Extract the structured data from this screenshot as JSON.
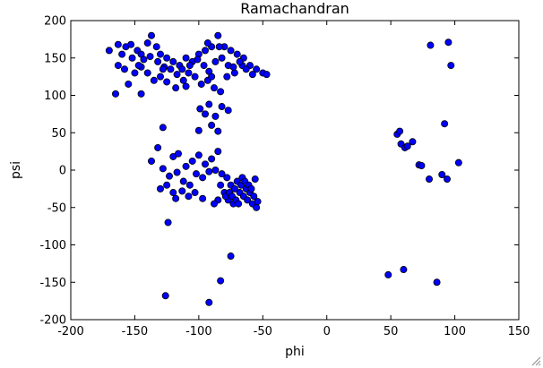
{
  "chart_data": {
    "type": "scatter",
    "title": "Ramachandran",
    "xlabel": "phi",
    "ylabel": "psi",
    "xlim": [
      -200,
      150
    ],
    "ylim": [
      -200,
      200
    ],
    "xticks": [
      -200,
      -150,
      -100,
      -50,
      0,
      50,
      100,
      150
    ],
    "yticks": [
      -200,
      -150,
      -100,
      -50,
      0,
      50,
      100,
      150,
      200
    ],
    "grid": false,
    "marker_color": "#0000ff",
    "series": [
      {
        "points": [
          [
            -170,
            160
          ],
          [
            -163,
            168
          ],
          [
            -160,
            155
          ],
          [
            -157,
            165
          ],
          [
            -153,
            168
          ],
          [
            -163,
            140
          ],
          [
            -158,
            135
          ],
          [
            -152,
            150
          ],
          [
            -148,
            160
          ],
          [
            -145,
            155
          ],
          [
            -140,
            170
          ],
          [
            -137,
            180
          ],
          [
            -133,
            165
          ],
          [
            -130,
            155
          ],
          [
            -125,
            150
          ],
          [
            -120,
            145
          ],
          [
            -115,
            140
          ],
          [
            -110,
            150
          ],
          [
            -105,
            145
          ],
          [
            -100,
            155
          ],
          [
            -95,
            160
          ],
          [
            -90,
            165
          ],
          [
            -85,
            180
          ],
          [
            -80,
            165
          ],
          [
            -75,
            160
          ],
          [
            -70,
            155
          ],
          [
            -65,
            150
          ],
          [
            -60,
            140
          ],
          [
            -55,
            135
          ],
          [
            -50,
            130
          ],
          [
            -47,
            128
          ],
          [
            -145,
            138
          ],
          [
            -140,
            130
          ],
          [
            -135,
            120
          ],
          [
            -130,
            125
          ],
          [
            -125,
            118
          ],
          [
            -118,
            110
          ],
          [
            -112,
            120
          ],
          [
            -108,
            130
          ],
          [
            -103,
            125
          ],
          [
            -98,
            115
          ],
          [
            -93,
            120
          ],
          [
            -88,
            110
          ],
          [
            -83,
            105
          ],
          [
            -78,
            125
          ],
          [
            -72,
            130
          ],
          [
            -66,
            140
          ],
          [
            -150,
            130
          ],
          [
            -147,
            140
          ],
          [
            -143,
            148
          ],
          [
            -138,
            152
          ],
          [
            -132,
            145
          ],
          [
            -127,
            138
          ],
          [
            -122,
            135
          ],
          [
            -117,
            128
          ],
          [
            -113,
            135
          ],
          [
            -107,
            140
          ],
          [
            -101,
            148
          ],
          [
            -96,
            140
          ],
          [
            -92,
            132
          ],
          [
            -87,
            145
          ],
          [
            -82,
            150
          ],
          [
            -77,
            140
          ],
          [
            -73,
            138
          ],
          [
            -68,
            145
          ],
          [
            -63,
            135
          ],
          [
            -58,
            128
          ],
          [
            -165,
            102
          ],
          [
            -155,
            115
          ],
          [
            -145,
            102
          ],
          [
            -128,
            135
          ],
          [
            -110,
            112
          ],
          [
            -90,
            125
          ],
          [
            -84,
            165
          ],
          [
            -93,
            170
          ],
          [
            -99,
            82
          ],
          [
            -92,
            88
          ],
          [
            -87,
            72
          ],
          [
            -82,
            85
          ],
          [
            -77,
            80
          ],
          [
            -90,
            60
          ],
          [
            -85,
            52
          ],
          [
            -95,
            75
          ],
          [
            -128,
            57
          ],
          [
            -100,
            53
          ],
          [
            -132,
            30
          ],
          [
            -137,
            12
          ],
          [
            -128,
            2
          ],
          [
            -120,
            18
          ],
          [
            -116,
            22
          ],
          [
            -110,
            5
          ],
          [
            -105,
            12
          ],
          [
            -100,
            20
          ],
          [
            -95,
            8
          ],
          [
            -90,
            15
          ],
          [
            -85,
            25
          ],
          [
            -123,
            -8
          ],
          [
            -117,
            -3
          ],
          [
            -112,
            -15
          ],
          [
            -107,
            -20
          ],
          [
            -102,
            -5
          ],
          [
            -97,
            -10
          ],
          [
            -92,
            -2
          ],
          [
            -87,
            0
          ],
          [
            -82,
            -5
          ],
          [
            -78,
            -10
          ],
          [
            -75,
            -20
          ],
          [
            -72,
            -25
          ],
          [
            -68,
            -30
          ],
          [
            -65,
            -35
          ],
          [
            -62,
            -40
          ],
          [
            -58,
            -45
          ],
          [
            -55,
            -50
          ],
          [
            -80,
            -30
          ],
          [
            -77,
            -40
          ],
          [
            -73,
            -45
          ],
          [
            -70,
            -15
          ],
          [
            -67,
            -20
          ],
          [
            -63,
            -25
          ],
          [
            -60,
            -30
          ],
          [
            -57,
            -35
          ],
          [
            -54,
            -42
          ],
          [
            -85,
            -40
          ],
          [
            -88,
            -45
          ],
          [
            -83,
            -20
          ],
          [
            -79,
            -35
          ],
          [
            -76,
            -30
          ],
          [
            -74,
            -35
          ],
          [
            -71,
            -40
          ],
          [
            -69,
            -45
          ],
          [
            -66,
            -10
          ],
          [
            -64,
            -15
          ],
          [
            -61,
            -20
          ],
          [
            -59,
            -25
          ],
          [
            -56,
            -12
          ],
          [
            -120,
            -30
          ],
          [
            -118,
            -38
          ],
          [
            -113,
            -28
          ],
          [
            -108,
            -35
          ],
          [
            -103,
            -30
          ],
          [
            -97,
            -38
          ],
          [
            -130,
            -25
          ],
          [
            -125,
            -20
          ],
          [
            -124,
            -70
          ],
          [
            -75,
            -115
          ],
          [
            -83,
            -148
          ],
          [
            -92,
            -177
          ],
          [
            -126,
            -168
          ],
          [
            48,
            -140
          ],
          [
            60,
            -133
          ],
          [
            86,
            -150
          ],
          [
            55,
            48
          ],
          [
            57,
            52
          ],
          [
            58,
            35
          ],
          [
            61,
            30
          ],
          [
            63,
            32
          ],
          [
            67,
            38
          ],
          [
            72,
            7
          ],
          [
            74,
            6
          ],
          [
            80,
            -12
          ],
          [
            90,
            -6
          ],
          [
            94,
            -12
          ],
          [
            92,
            62
          ],
          [
            103,
            10
          ],
          [
            81,
            167
          ],
          [
            95,
            171
          ],
          [
            97,
            140
          ]
        ]
      }
    ]
  }
}
